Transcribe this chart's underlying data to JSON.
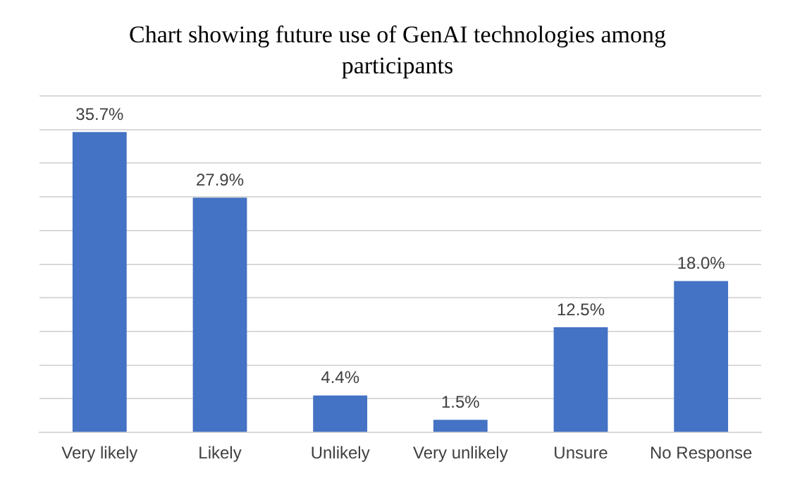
{
  "chart_data": {
    "type": "bar",
    "title": "Chart showing future use of GenAI technologies among participants",
    "categories": [
      "Very likely",
      "Likely",
      "Unlikely",
      "Very unlikely",
      "Unsure",
      "No Response"
    ],
    "values": [
      35.7,
      27.9,
      4.4,
      1.5,
      12.5,
      18.0
    ],
    "value_labels": [
      "35.7%",
      "27.9%",
      "4.4%",
      "1.5%",
      "12.5%",
      "18.0%"
    ],
    "color": "#4472c4",
    "ylim": [
      0,
      40
    ],
    "yticks": [
      {
        "value": 0,
        "label": null
      },
      {
        "value": 4,
        "label": null
      },
      {
        "value": 8,
        "label": null
      },
      {
        "value": 12,
        "label": null
      },
      {
        "value": 16,
        "label": null
      },
      {
        "value": 20,
        "label": null
      },
      {
        "value": 24,
        "label": null
      },
      {
        "value": 28,
        "label": null
      },
      {
        "value": 32,
        "label": null
      },
      {
        "value": 36,
        "label": null
      },
      {
        "value": 40,
        "label": null
      }
    ],
    "grid": "y",
    "tick_labels": "x",
    "legend": false
  }
}
